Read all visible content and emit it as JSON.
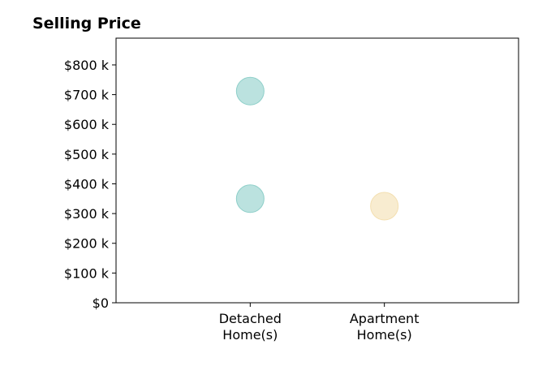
{
  "chart_data": {
    "type": "scatter",
    "title": "Selling Price",
    "xlabel": "",
    "ylabel": "",
    "categories": [
      [
        "Detached",
        "Home(s)"
      ],
      [
        "Apartment",
        "Home(s)"
      ]
    ],
    "x_positions": [
      1,
      2
    ],
    "xlim": [
      0,
      3
    ],
    "ylim": [
      0,
      890000
    ],
    "y_ticks": [
      0,
      100000,
      200000,
      300000,
      400000,
      500000,
      600000,
      700000,
      800000
    ],
    "y_tick_labels": [
      "$0",
      "$100 k",
      "$200 k",
      "$300 k",
      "$400 k",
      "$500 k",
      "$600 k",
      "$700 k",
      "$800 k"
    ],
    "grid": false,
    "points": [
      {
        "category": "Detached Home(s)",
        "x": 1,
        "y": 712000,
        "color": "#8ecfc9"
      },
      {
        "category": "Detached Home(s)",
        "x": 1,
        "y": 350000,
        "color": "#8ecfc9"
      },
      {
        "category": "Apartment Home(s)",
        "x": 2,
        "y": 325000,
        "color": "#f3dfb0"
      }
    ]
  }
}
